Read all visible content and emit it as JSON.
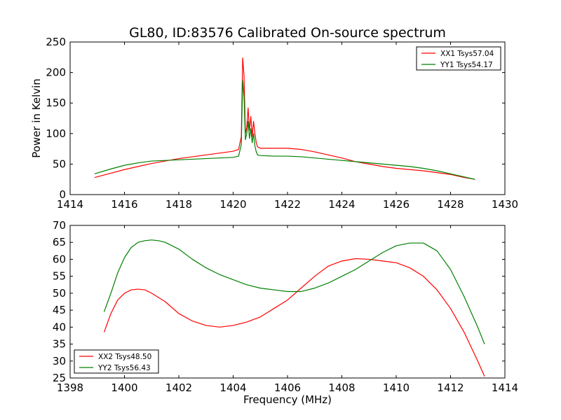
{
  "chart_data": [
    {
      "type": "line",
      "title": "GL80, ID:83576 Calibrated On-source spectrum",
      "xlabel": "",
      "ylabel": "Power in Kelvin",
      "xlim": [
        1414,
        1430
      ],
      "ylim": [
        0,
        250
      ],
      "xticks": [
        1414,
        1416,
        1418,
        1420,
        1422,
        1424,
        1426,
        1428,
        1430
      ],
      "yticks": [
        0,
        50,
        100,
        150,
        200,
        250
      ],
      "legend_position": "top-right",
      "series": [
        {
          "name": "XX1 Tsys57.04",
          "color": "#ff0000",
          "x": [
            1414.9,
            1415.5,
            1416.0,
            1416.5,
            1417.0,
            1417.5,
            1418.0,
            1418.5,
            1419.0,
            1419.5,
            1420.0,
            1420.2,
            1420.3,
            1420.35,
            1420.4,
            1420.45,
            1420.5,
            1420.55,
            1420.6,
            1420.65,
            1420.7,
            1420.75,
            1420.8,
            1420.85,
            1420.9,
            1421.0,
            1421.5,
            1422.0,
            1422.5,
            1423.0,
            1423.5,
            1424.0,
            1424.5,
            1425.0,
            1425.5,
            1426.0,
            1426.5,
            1427.0,
            1427.5,
            1428.0,
            1428.5,
            1428.9
          ],
          "y": [
            28,
            35,
            41,
            46,
            51,
            55,
            59,
            62,
            65,
            68,
            71,
            74,
            95,
            224,
            195,
            100,
            110,
            142,
            105,
            128,
            95,
            120,
            100,
            85,
            78,
            76,
            76,
            76,
            74,
            70,
            65,
            60,
            54,
            50,
            46,
            43,
            41,
            39,
            36,
            33,
            28,
            25
          ]
        },
        {
          "name": "YY1 Tsys54.17",
          "color": "#008000",
          "x": [
            1414.9,
            1415.5,
            1416.0,
            1416.5,
            1417.0,
            1417.5,
            1418.0,
            1418.5,
            1419.0,
            1419.5,
            1420.0,
            1420.2,
            1420.3,
            1420.35,
            1420.4,
            1420.45,
            1420.5,
            1420.55,
            1420.6,
            1420.65,
            1420.7,
            1420.75,
            1420.8,
            1420.85,
            1420.9,
            1421.0,
            1421.5,
            1422.0,
            1422.5,
            1423.0,
            1423.5,
            1424.0,
            1424.5,
            1425.0,
            1425.5,
            1426.0,
            1426.5,
            1427.0,
            1427.5,
            1428.0,
            1428.5,
            1428.9
          ],
          "y": [
            34,
            42,
            48,
            52,
            55,
            56,
            57,
            58,
            59,
            60,
            61,
            63,
            82,
            187,
            160,
            90,
            100,
            120,
            92,
            108,
            85,
            100,
            80,
            70,
            65,
            64,
            63,
            63,
            62,
            60,
            58,
            56,
            54,
            52,
            50,
            48,
            46,
            43,
            39,
            34,
            29,
            25
          ]
        }
      ]
    },
    {
      "type": "line",
      "title": "",
      "xlabel": "Frequency (MHz)",
      "ylabel": "",
      "xlim": [
        1398,
        1414
      ],
      "ylim": [
        25,
        70
      ],
      "xticks": [
        1398,
        1400,
        1402,
        1404,
        1406,
        1408,
        1410,
        1412,
        1414
      ],
      "yticks": [
        25,
        30,
        35,
        40,
        45,
        50,
        55,
        60,
        65,
        70
      ],
      "legend_position": "bottom-left",
      "series": [
        {
          "name": "XX2 Tsys48.50",
          "color": "#ff0000",
          "x": [
            1399.25,
            1399.5,
            1399.75,
            1400.0,
            1400.25,
            1400.5,
            1400.75,
            1401.0,
            1401.5,
            1402.0,
            1402.5,
            1403.0,
            1403.5,
            1404.0,
            1404.5,
            1405.0,
            1405.5,
            1406.0,
            1406.5,
            1407.0,
            1407.5,
            1408.0,
            1408.5,
            1409.0,
            1409.5,
            1410.0,
            1410.5,
            1411.0,
            1411.5,
            1412.0,
            1412.5,
            1413.0,
            1413.25
          ],
          "y": [
            38.5,
            44,
            48,
            50,
            51,
            51.2,
            51,
            50,
            47.5,
            44,
            41.8,
            40.5,
            40,
            40.5,
            41.5,
            43,
            45.5,
            48,
            51.5,
            55,
            58,
            59.5,
            60.2,
            60,
            59.5,
            59,
            57.5,
            55,
            51,
            45.5,
            38.5,
            30,
            25.5
          ]
        },
        {
          "name": "YY2 Tsys56.43",
          "color": "#008000",
          "x": [
            1399.25,
            1399.5,
            1399.75,
            1400.0,
            1400.25,
            1400.5,
            1400.75,
            1401.0,
            1401.25,
            1401.5,
            1402.0,
            1402.5,
            1403.0,
            1403.5,
            1404.0,
            1404.5,
            1405.0,
            1405.5,
            1406.0,
            1406.5,
            1407.0,
            1407.5,
            1408.0,
            1408.5,
            1409.0,
            1409.5,
            1410.0,
            1410.5,
            1411.0,
            1411.5,
            1412.0,
            1412.5,
            1413.0,
            1413.25
          ],
          "y": [
            44.5,
            50,
            56,
            60.5,
            63.5,
            65,
            65.5,
            65.7,
            65.5,
            65,
            63,
            60,
            57.5,
            55.5,
            54,
            52.5,
            51.5,
            51,
            50.5,
            50.5,
            51.5,
            53,
            55,
            57,
            59.5,
            62,
            64,
            64.8,
            64.8,
            62.5,
            57,
            49,
            40,
            35
          ]
        }
      ]
    }
  ]
}
